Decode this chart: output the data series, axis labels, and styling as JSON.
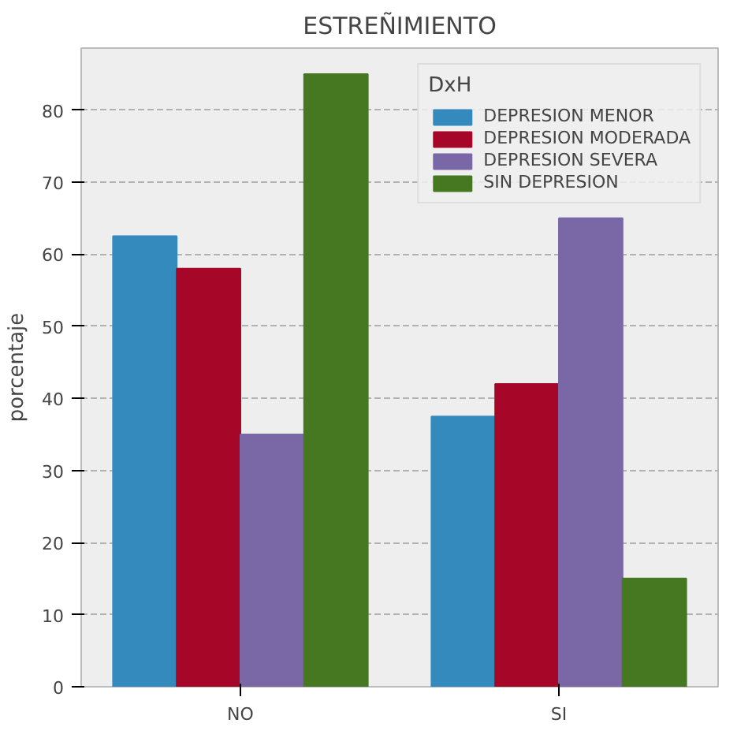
{
  "chart_data": {
    "type": "bar",
    "title": "ESTREÑIMIENTO",
    "ylabel": "porcentaje",
    "legend_title": "DxH",
    "categories": [
      "NO",
      "SI"
    ],
    "series": [
      {
        "name": "DEPRESION MENOR",
        "color": "#348abd",
        "values": [
          62.5,
          37.5
        ]
      },
      {
        "name": "DEPRESION MODERADA",
        "color": "#a60628",
        "values": [
          58,
          42
        ]
      },
      {
        "name": "DEPRESION SEVERA",
        "color": "#7a68a6",
        "values": [
          35,
          65
        ]
      },
      {
        "name": "SIN DEPRESION",
        "color": "#467821",
        "values": [
          85,
          15
        ]
      }
    ],
    "ylim": [
      0,
      88.6
    ],
    "yticks": [
      0,
      10,
      20,
      30,
      40,
      50,
      60,
      70,
      80
    ],
    "grid": "y",
    "legend": "top right"
  }
}
